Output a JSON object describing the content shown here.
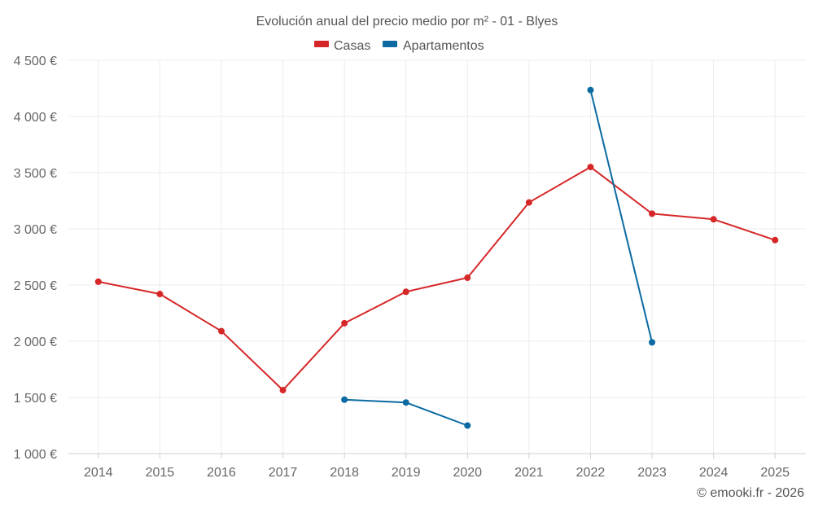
{
  "chart_data": {
    "type": "line",
    "title": "Evolución anual del precio medio por m² - 01 - Blyes",
    "categories": [
      "2014",
      "2015",
      "2016",
      "2017",
      "2018",
      "2019",
      "2020",
      "2021",
      "2022",
      "2023",
      "2024",
      "2025"
    ],
    "yticks": [
      "1 000 €",
      "1 500 €",
      "2 000 €",
      "2 500 €",
      "3 000 €",
      "3 500 €",
      "4 000 €",
      "4 500 €"
    ],
    "ylim": [
      1000,
      4500
    ],
    "series": [
      {
        "name": "Casas",
        "color": "#d62728",
        "values": [
          2530,
          2420,
          2090,
          1565,
          2160,
          2440,
          2565,
          3235,
          3550,
          3135,
          3085,
          2900
        ]
      },
      {
        "name": "Apartamentos",
        "color": "#0a6aa1",
        "values": [
          null,
          null,
          null,
          null,
          1480,
          1455,
          1250,
          null,
          4235,
          1990,
          null,
          null
        ]
      }
    ],
    "credit": "© emooki.fr - 2026"
  }
}
